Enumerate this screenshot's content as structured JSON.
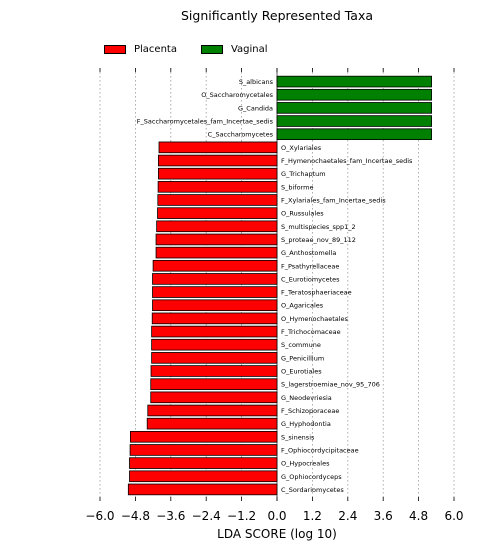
{
  "chart_data": {
    "type": "bar",
    "orientation": "horizontal",
    "title": "Significantly Represented Taxa",
    "xlabel": "LDA SCORE (log 10)",
    "ylabel": "",
    "xlim": [
      -6.0,
      6.0
    ],
    "xticks": [
      -6.0,
      -4.8,
      -3.6,
      -2.4,
      -1.2,
      0.0,
      1.2,
      2.4,
      3.6,
      4.8,
      6.0
    ],
    "xtick_labels": [
      "−6.0",
      "−4.8",
      "−3.6",
      "−2.4",
      "−1.2",
      "0.0",
      "1.2",
      "2.4",
      "3.6",
      "4.8",
      "6.0"
    ],
    "grid": "vertical dotted",
    "legend_position": "top-left",
    "groups": [
      {
        "name": "Placenta",
        "color": "#ff0000"
      },
      {
        "name": "Vaginal",
        "color": "#008000"
      }
    ],
    "categories": [
      "S_albicans",
      "O_Saccharomycetales",
      "G_Candida",
      "F_Saccharomycetales_fam_Incertae_sedis",
      "C_Saccharomycetes",
      "O_Xylariales",
      "F_Hymenochaetales_fam_Incertae_sedis",
      "G_Trichaptum",
      "S_biforme",
      "F_Xylariales_fam_Incertae_sedis",
      "O_Russulales",
      "S_multispecies_spp1_2",
      "S_proteae_nov_89_112",
      "G_Anthostomella",
      "F_Psathyrellaceae",
      "C_Eurotiomycetes",
      "F_Teratosphaeriaceae",
      "O_Agaricales",
      "O_Hymenochaetales",
      "F_Trichocomaceae",
      "S_commune",
      "G_Penicillium",
      "O_Eurotiales",
      "S_lagerstroemiae_nov_95_706",
      "G_Neodevriesia",
      "F_Schizoporaceae",
      "G_Hyphodontia",
      "S_sinensis",
      "F_Ophiocordycipitaceae",
      "O_Hypocreales",
      "G_Ophiocordyceps",
      "C_Sordariomycetes"
    ],
    "values": [
      5.24,
      5.24,
      5.24,
      5.24,
      5.24,
      -4.0,
      -4.02,
      -4.02,
      -4.03,
      -4.04,
      -4.05,
      -4.08,
      -4.1,
      -4.1,
      -4.2,
      -4.22,
      -4.22,
      -4.22,
      -4.23,
      -4.25,
      -4.25,
      -4.25,
      -4.27,
      -4.28,
      -4.28,
      -4.38,
      -4.4,
      -4.97,
      -4.98,
      -5.0,
      -5.0,
      -5.04
    ],
    "group_of_each": [
      "Vaginal",
      "Vaginal",
      "Vaginal",
      "Vaginal",
      "Vaginal",
      "Placenta",
      "Placenta",
      "Placenta",
      "Placenta",
      "Placenta",
      "Placenta",
      "Placenta",
      "Placenta",
      "Placenta",
      "Placenta",
      "Placenta",
      "Placenta",
      "Placenta",
      "Placenta",
      "Placenta",
      "Placenta",
      "Placenta",
      "Placenta",
      "Placenta",
      "Placenta",
      "Placenta",
      "Placenta",
      "Placenta",
      "Placenta",
      "Placenta",
      "Placenta",
      "Placenta"
    ]
  }
}
